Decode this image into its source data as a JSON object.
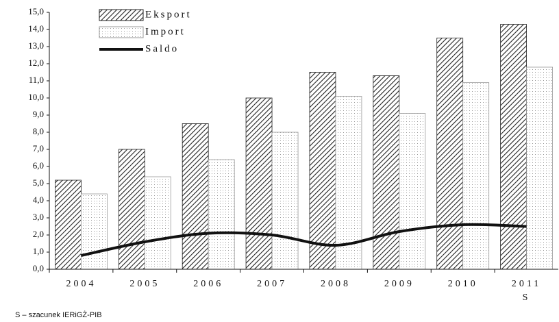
{
  "chart_data": {
    "type": "bar-line",
    "categories": [
      "2004",
      "2005",
      "2006",
      "2007",
      "2008",
      "2009",
      "2010",
      "2011"
    ],
    "category_notes": [
      null,
      null,
      null,
      null,
      null,
      null,
      null,
      "S"
    ],
    "series": [
      {
        "name": "Eksport",
        "type": "bar",
        "color": "#222222",
        "values": [
          5.2,
          7.0,
          8.5,
          10.0,
          11.5,
          11.3,
          13.5,
          14.3
        ]
      },
      {
        "name": "Import",
        "type": "bar",
        "color": "#999999",
        "values": [
          4.4,
          5.4,
          6.4,
          8.0,
          10.1,
          9.1,
          10.9,
          11.8
        ]
      },
      {
        "name": "Saldo",
        "type": "line",
        "color": "#111111",
        "values": [
          0.8,
          1.6,
          2.1,
          2.0,
          1.4,
          2.2,
          2.6,
          2.5
        ]
      }
    ],
    "ylim": [
      0,
      15
    ],
    "yticks": [
      {
        "value": 0,
        "label": "0,0"
      },
      {
        "value": 1,
        "label": "1,0"
      },
      {
        "value": 2,
        "label": "2,0"
      },
      {
        "value": 3,
        "label": "3,0"
      },
      {
        "value": 4,
        "label": "4,0"
      },
      {
        "value": 5,
        "label": "5,0"
      },
      {
        "value": 6,
        "label": "6,0"
      },
      {
        "value": 7,
        "label": "7,0"
      },
      {
        "value": 8,
        "label": "8,0"
      },
      {
        "value": 9,
        "label": "9,0"
      },
      {
        "value": 10,
        "label": "10,0"
      },
      {
        "value": 11,
        "label": "11,0"
      },
      {
        "value": 12,
        "label": "12,0"
      },
      {
        "value": 13,
        "label": "13,0"
      },
      {
        "value": 14,
        "label": "14,0"
      },
      {
        "value": 15,
        "label": "15,0"
      }
    ],
    "legend": "upper left",
    "footnote": "S – szacunek IERiGŻ-PIB"
  }
}
